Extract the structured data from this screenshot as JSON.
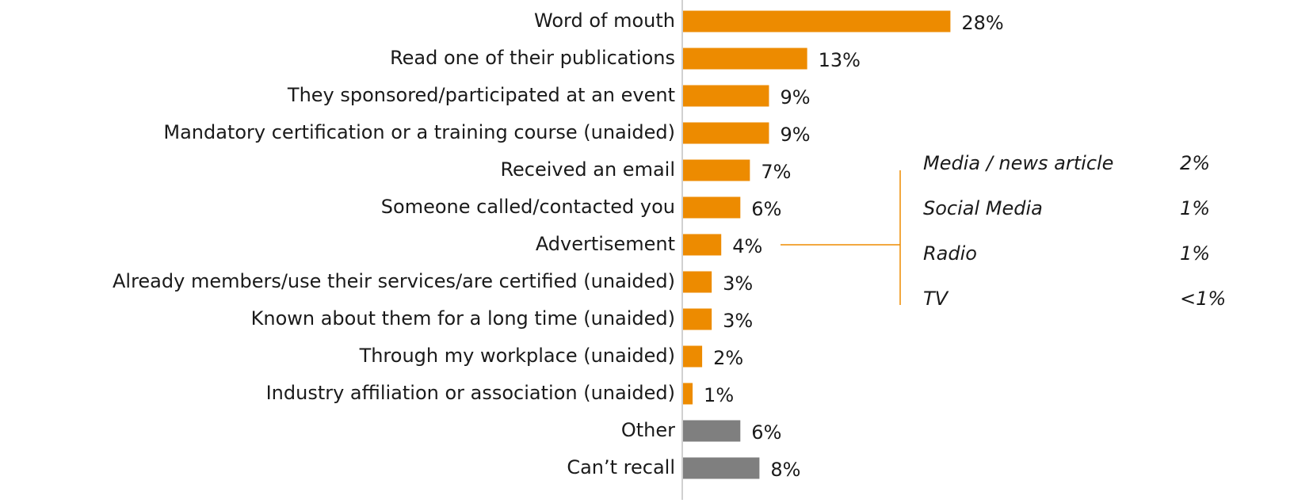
{
  "chart_data": {
    "type": "bar",
    "orientation": "horizontal",
    "categories": [
      "Word of mouth",
      "Read one of their publications",
      "They sponsored/participated at an event",
      "Mandatory certification or a training course (unaided)",
      "Received an email",
      "Someone called/contacted you",
      "Advertisement",
      "Already members/use their services/are certified (unaided)",
      "Known about them for a long time (unaided)",
      "Through my workplace (unaided)",
      "Industry affiliation or association (unaided)",
      "Other",
      "Can’t recall"
    ],
    "values": [
      28,
      13,
      9,
      9,
      7,
      6,
      4,
      3,
      3,
      2,
      1,
      6,
      8
    ],
    "value_labels": [
      "28%",
      "13%",
      "9%",
      "9%",
      "7%",
      "6%",
      "4%",
      "3%",
      "3%",
      "2%",
      "1%",
      "6%",
      "8%"
    ],
    "colors": [
      "#ed8b00",
      "#ed8b00",
      "#ed8b00",
      "#ed8b00",
      "#ed8b00",
      "#ed8b00",
      "#ed8b00",
      "#ed8b00",
      "#ed8b00",
      "#ed8b00",
      "#ed8b00",
      "#7f7f7f",
      "#7f7f7f"
    ],
    "breakdown": {
      "color": "#ed8b00",
      "labels": [
        "Media / news article",
        "Social Media",
        "Radio",
        "TV"
      ],
      "values": [
        2,
        1,
        1,
        0.5
      ],
      "value_labels": [
        "2%",
        "1%",
        "1%",
        "<1%"
      ]
    }
  }
}
